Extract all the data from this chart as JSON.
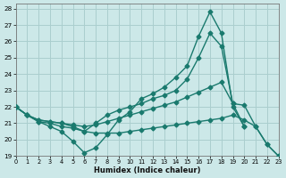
{
  "xlabel": "Humidex (Indice chaleur)",
  "bg_color": "#cce8e8",
  "line_color": "#1a7a6e",
  "grid_color": "#aacece",
  "xlim": [
    0,
    23
  ],
  "ylim": [
    19,
    28.3
  ],
  "xticks": [
    0,
    1,
    2,
    3,
    4,
    5,
    6,
    7,
    8,
    9,
    10,
    11,
    12,
    13,
    14,
    15,
    16,
    17,
    18,
    19,
    20,
    21,
    22,
    23
  ],
  "yticks": [
    19,
    20,
    21,
    22,
    23,
    24,
    25,
    26,
    27,
    28
  ],
  "lines": [
    {
      "x": [
        0,
        1,
        2,
        3,
        4,
        5,
        6,
        7,
        8,
        9,
        10,
        11,
        12,
        13,
        14,
        15,
        16,
        17,
        18,
        19,
        20
      ],
      "y": [
        22.0,
        21.5,
        21.1,
        20.8,
        20.5,
        19.9,
        19.2,
        19.5,
        20.3,
        21.2,
        21.7,
        22.5,
        22.8,
        23.2,
        23.8,
        24.5,
        26.3,
        27.8,
        26.5,
        22.0,
        20.8
      ]
    },
    {
      "x": [
        0,
        1,
        2,
        3,
        4,
        5,
        6,
        7,
        8,
        9,
        10,
        11,
        12,
        13,
        14,
        15,
        16,
        17,
        18,
        19,
        20
      ],
      "y": [
        22.0,
        21.5,
        21.1,
        21.0,
        20.8,
        20.7,
        20.5,
        21.0,
        21.5,
        21.8,
        22.0,
        22.2,
        22.5,
        22.7,
        23.0,
        23.7,
        25.0,
        26.5,
        25.7,
        22.2,
        20.8
      ]
    },
    {
      "x": [
        0,
        1,
        2,
        3,
        4,
        5,
        6,
        7,
        8,
        9,
        10,
        11,
        12,
        13,
        14,
        15,
        16,
        17,
        18,
        19,
        20,
        21,
        22,
        23
      ],
      "y": [
        22.0,
        21.5,
        21.2,
        21.1,
        21.0,
        20.9,
        20.8,
        20.9,
        21.1,
        21.3,
        21.5,
        21.7,
        21.9,
        22.1,
        22.3,
        22.6,
        22.9,
        23.2,
        23.5,
        22.2,
        22.1,
        20.8,
        19.7,
        19.0
      ]
    },
    {
      "x": [
        0,
        1,
        2,
        3,
        4,
        5,
        6,
        7,
        8,
        9,
        10,
        11,
        12,
        13,
        14,
        15,
        16,
        17,
        18,
        19,
        20,
        21,
        22,
        23
      ],
      "y": [
        22.0,
        21.5,
        21.2,
        21.1,
        21.0,
        20.8,
        20.5,
        20.4,
        20.4,
        20.4,
        20.5,
        20.6,
        20.7,
        20.8,
        20.9,
        21.0,
        21.1,
        21.2,
        21.3,
        21.5,
        21.2,
        20.8,
        19.7,
        19.0
      ]
    }
  ],
  "marker": "D",
  "markersize": 2.5,
  "linewidth": 1.0
}
